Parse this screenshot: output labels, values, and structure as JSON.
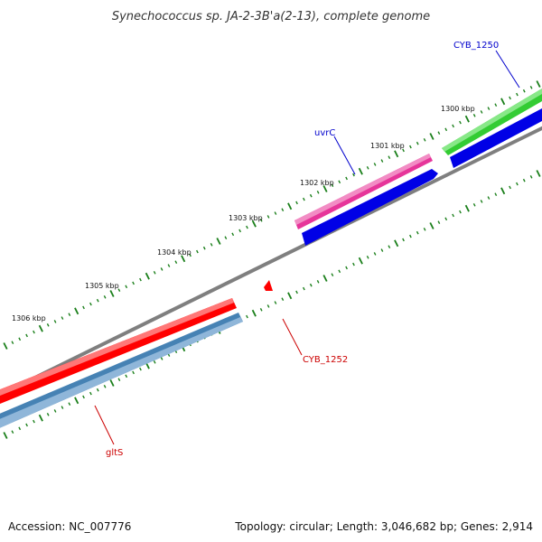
{
  "title": "Synechococcus sp. JA-2-3B'a(2-13), complete genome",
  "footer": {
    "accession": "Accession: NC_007776",
    "summary": "Topology: circular; Length: 3,046,682 bp; Genes: 2,914"
  },
  "ticks": [
    {
      "label": "1300 kbp"
    },
    {
      "label": "1301 kbp"
    },
    {
      "label": "1302 kbp"
    },
    {
      "label": "1303 kbp"
    },
    {
      "label": "1304 kbp"
    },
    {
      "label": "1305 kbp"
    },
    {
      "label": "1306 kbp"
    }
  ],
  "genes": [
    {
      "label": "CYB_1250",
      "color": "#0000cc"
    },
    {
      "label": "uvrC",
      "color": "#0000cc"
    },
    {
      "label": "CYB_1252",
      "color": "#cc0000"
    },
    {
      "label": "gltS",
      "color": "#cc0000"
    }
  ],
  "colors": {
    "backbone": "#7f7f7f",
    "tick": "#1a7f1a",
    "green_feature": "#33cc33",
    "pink_feature": "#e6359a",
    "blue_feature": "#0000e6",
    "red_feature": "#ff0000",
    "steelblue_feature": "#4682b4"
  }
}
